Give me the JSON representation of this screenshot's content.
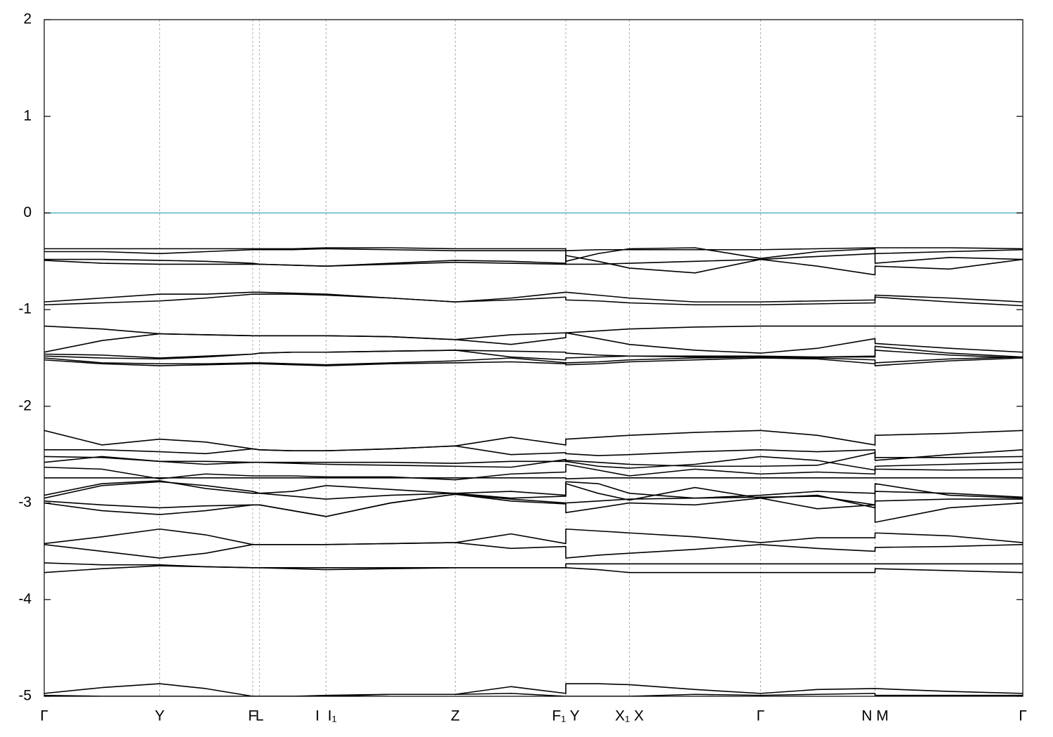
{
  "chart_data": {
    "type": "line",
    "color": "#000000",
    "hline": {
      "value": 0,
      "color": "#56b4c8"
    },
    "grid": "x",
    "xlim": [
      0,
      1
    ],
    "ylim": [
      -5,
      2
    ],
    "yticks": [
      -5,
      -4,
      -3,
      -2,
      -1,
      0,
      1,
      2
    ],
    "xticks": [
      {
        "value": 0,
        "label": "Γ"
      },
      {
        "value": 0.118,
        "label": "Y"
      },
      {
        "value": 0.213,
        "label": "F"
      },
      {
        "value": 0.22,
        "label": "L"
      },
      {
        "value": 0.288,
        "label": "I  I₁"
      },
      {
        "value": 0.42,
        "label": "Z"
      },
      {
        "value": 0.533,
        "label": "F₁ Y"
      },
      {
        "value": 0.598,
        "label": "X₁ X"
      },
      {
        "value": 0.732,
        "label": "Γ"
      },
      {
        "value": 0.849,
        "label": "N M"
      },
      {
        "value": 1,
        "label": "Γ"
      }
    ],
    "x": [
      0,
      0.059,
      0.118,
      0.165,
      0.213,
      0.22,
      0.254,
      0.288,
      0.288,
      0.354,
      0.42,
      0.477,
      0.533,
      0.533,
      0.566,
      0.598,
      0.665,
      0.732,
      0.79,
      0.849,
      0.849,
      0.925,
      1.0
    ],
    "series": [
      {
        "values": [
          -0.37,
          -0.37,
          -0.37,
          -0.37,
          -0.37,
          -0.37,
          -0.37,
          -0.36,
          -0.36,
          -0.36,
          -0.37,
          -0.37,
          -0.37,
          -0.39,
          -0.38,
          -0.38,
          -0.38,
          -0.38,
          -0.37,
          -0.36,
          -0.36,
          -0.36,
          -0.37
        ]
      },
      {
        "values": [
          -0.4,
          -0.4,
          -0.42,
          -0.4,
          -0.38,
          -0.38,
          -0.38,
          -0.37,
          -0.37,
          -0.38,
          -0.39,
          -0.39,
          -0.39,
          -0.5,
          -0.42,
          -0.37,
          -0.36,
          -0.47,
          -0.4,
          -0.37,
          -0.52,
          -0.46,
          -0.48
        ]
      },
      {
        "values": [
          -0.48,
          -0.48,
          -0.49,
          -0.5,
          -0.52,
          -0.53,
          -0.54,
          -0.55,
          -0.55,
          -0.52,
          -0.49,
          -0.5,
          -0.52,
          -0.44,
          -0.5,
          -0.57,
          -0.62,
          -0.48,
          -0.55,
          -0.64,
          -0.55,
          -0.58,
          -0.48
        ]
      },
      {
        "values": [
          -0.49,
          -0.52,
          -0.53,
          -0.53,
          -0.53,
          -0.53,
          -0.54,
          -0.55,
          -0.55,
          -0.53,
          -0.51,
          -0.52,
          -0.53,
          -0.53,
          -0.53,
          -0.52,
          -0.5,
          -0.48,
          -0.45,
          -0.42,
          -0.42,
          -0.4,
          -0.38
        ]
      },
      {
        "values": [
          -0.92,
          -0.88,
          -0.84,
          -0.84,
          -0.82,
          -0.82,
          -0.83,
          -0.84,
          -0.84,
          -0.88,
          -0.92,
          -0.88,
          -0.82,
          -0.82,
          -0.85,
          -0.88,
          -0.92,
          -0.92,
          -0.91,
          -0.9,
          -0.85,
          -0.88,
          -0.92
        ]
      },
      {
        "values": [
          -0.95,
          -0.93,
          -0.91,
          -0.88,
          -0.84,
          -0.84,
          -0.84,
          -0.85,
          -0.85,
          -0.88,
          -0.92,
          -0.9,
          -0.87,
          -0.9,
          -0.91,
          -0.93,
          -0.95,
          -0.95,
          -0.94,
          -0.93,
          -0.87,
          -0.92,
          -0.96
        ]
      },
      {
        "values": [
          -1.17,
          -1.2,
          -1.25,
          -1.26,
          -1.27,
          -1.27,
          -1.27,
          -1.27,
          -1.27,
          -1.28,
          -1.31,
          -1.26,
          -1.24,
          -1.24,
          -1.22,
          -1.2,
          -1.18,
          -1.17,
          -1.17,
          -1.17,
          -1.17,
          -1.17,
          -1.17
        ]
      },
      {
        "values": [
          -1.44,
          -1.32,
          -1.25,
          -1.26,
          -1.27,
          -1.27,
          -1.27,
          -1.27,
          -1.27,
          -1.28,
          -1.31,
          -1.36,
          -1.29,
          -1.24,
          -1.3,
          -1.36,
          -1.42,
          -1.45,
          -1.4,
          -1.3,
          -1.35,
          -1.4,
          -1.44
        ]
      },
      {
        "values": [
          -1.46,
          -1.47,
          -1.5,
          -1.48,
          -1.46,
          -1.45,
          -1.44,
          -1.44,
          -1.44,
          -1.43,
          -1.42,
          -1.43,
          -1.44,
          -1.45,
          -1.47,
          -1.48,
          -1.49,
          -1.49,
          -1.49,
          -1.48,
          -1.38,
          -1.45,
          -1.49
        ]
      },
      {
        "values": [
          -1.48,
          -1.5,
          -1.51,
          -1.49,
          -1.46,
          -1.45,
          -1.44,
          -1.44,
          -1.44,
          -1.43,
          -1.42,
          -1.49,
          -1.52,
          -1.5,
          -1.49,
          -1.48,
          -1.48,
          -1.48,
          -1.49,
          -1.49,
          -1.42,
          -1.47,
          -1.5
        ]
      },
      {
        "values": [
          -1.5,
          -1.55,
          -1.56,
          -1.56,
          -1.55,
          -1.55,
          -1.56,
          -1.57,
          -1.57,
          -1.55,
          -1.53,
          -1.5,
          -1.55,
          -1.55,
          -1.54,
          -1.52,
          -1.5,
          -1.49,
          -1.5,
          -1.52,
          -1.55,
          -1.51,
          -1.49
        ]
      },
      {
        "values": [
          -1.52,
          -1.56,
          -1.58,
          -1.57,
          -1.56,
          -1.56,
          -1.57,
          -1.58,
          -1.58,
          -1.56,
          -1.55,
          -1.54,
          -1.56,
          -1.57,
          -1.56,
          -1.54,
          -1.52,
          -1.5,
          -1.51,
          -1.56,
          -1.58,
          -1.53,
          -1.5
        ]
      },
      {
        "values": [
          -2.25,
          -2.4,
          -2.34,
          -2.37,
          -2.44,
          -2.45,
          -2.46,
          -2.46,
          -2.46,
          -2.44,
          -2.41,
          -2.32,
          -2.4,
          -2.34,
          -2.32,
          -2.3,
          -2.27,
          -2.25,
          -2.3,
          -2.4,
          -2.3,
          -2.28,
          -2.25
        ]
      },
      {
        "values": [
          -2.45,
          -2.45,
          -2.47,
          -2.49,
          -2.44,
          -2.45,
          -2.46,
          -2.46,
          -2.46,
          -2.44,
          -2.41,
          -2.5,
          -2.48,
          -2.49,
          -2.51,
          -2.5,
          -2.47,
          -2.45,
          -2.47,
          -2.45,
          -2.56,
          -2.5,
          -2.45
        ]
      },
      {
        "values": [
          -2.52,
          -2.53,
          -2.57,
          -2.57,
          -2.58,
          -2.58,
          -2.58,
          -2.58,
          -2.58,
          -2.58,
          -2.59,
          -2.57,
          -2.57,
          -2.56,
          -2.58,
          -2.6,
          -2.62,
          -2.62,
          -2.61,
          -2.48,
          -2.53,
          -2.53,
          -2.52
        ]
      },
      {
        "values": [
          -2.58,
          -2.52,
          -2.57,
          -2.6,
          -2.58,
          -2.58,
          -2.59,
          -2.6,
          -2.6,
          -2.61,
          -2.62,
          -2.63,
          -2.55,
          -2.57,
          -2.62,
          -2.64,
          -2.6,
          -2.52,
          -2.56,
          -2.66,
          -2.62,
          -2.6,
          -2.58
        ]
      },
      {
        "values": [
          -2.63,
          -2.65,
          -2.75,
          -2.7,
          -2.72,
          -2.72,
          -2.72,
          -2.73,
          -2.73,
          -2.73,
          -2.76,
          -2.7,
          -2.68,
          -2.6,
          -2.66,
          -2.72,
          -2.65,
          -2.7,
          -2.68,
          -2.7,
          -2.65,
          -2.66,
          -2.65
        ]
      },
      {
        "values": [
          -2.74,
          -2.74,
          -2.74,
          -2.74,
          -2.74,
          -2.74,
          -2.74,
          -2.74,
          -2.74,
          -2.74,
          -2.74,
          -2.74,
          -2.74,
          -2.75,
          -2.74,
          -2.74,
          -2.74,
          -2.74,
          -2.74,
          -2.74,
          -2.74,
          -2.74,
          -2.74
        ]
      },
      {
        "values": [
          -2.92,
          -2.8,
          -2.77,
          -2.85,
          -2.9,
          -2.9,
          -2.88,
          -2.82,
          -2.82,
          -2.86,
          -2.9,
          -2.88,
          -2.92,
          -2.78,
          -2.8,
          -2.9,
          -2.95,
          -2.92,
          -2.88,
          -2.9,
          -2.8,
          -2.92,
          -2.95
        ]
      },
      {
        "values": [
          -2.95,
          -2.82,
          -2.78,
          -2.82,
          -2.88,
          -2.9,
          -2.93,
          -2.96,
          -2.96,
          -2.92,
          -2.9,
          -2.95,
          -2.93,
          -2.8,
          -2.9,
          -2.97,
          -2.84,
          -2.95,
          -2.92,
          -3.05,
          -2.88,
          -2.9,
          -2.94
        ]
      },
      {
        "values": [
          -2.98,
          -3.02,
          -3.05,
          -3.03,
          -3.02,
          -3.02,
          -3.08,
          -3.14,
          -3.14,
          -3.0,
          -2.91,
          -2.96,
          -3.0,
          -3.0,
          -2.98,
          -2.96,
          -2.95,
          -2.94,
          -2.93,
          -3.02,
          -2.98,
          -2.96,
          -2.96
        ]
      },
      {
        "values": [
          -3.0,
          -3.08,
          -3.12,
          -3.08,
          -3.02,
          -3.02,
          -3.08,
          -3.14,
          -3.14,
          -3.0,
          -2.91,
          -2.98,
          -3.01,
          -3.1,
          -3.05,
          -3.0,
          -3.02,
          -2.95,
          -3.06,
          -3.02,
          -3.2,
          -3.05,
          -3.0
        ]
      },
      {
        "values": [
          -3.42,
          -3.35,
          -3.27,
          -3.33,
          -3.43,
          -3.43,
          -3.43,
          -3.43,
          -3.43,
          -3.42,
          -3.41,
          -3.32,
          -3.42,
          -3.27,
          -3.29,
          -3.31,
          -3.35,
          -3.41,
          -3.36,
          -3.36,
          -3.31,
          -3.34,
          -3.41
        ]
      },
      {
        "values": [
          -3.43,
          -3.5,
          -3.57,
          -3.52,
          -3.43,
          -3.43,
          -3.43,
          -3.43,
          -3.43,
          -3.42,
          -3.41,
          -3.47,
          -3.45,
          -3.57,
          -3.54,
          -3.52,
          -3.48,
          -3.43,
          -3.47,
          -3.5,
          -3.46,
          -3.45,
          -3.43
        ]
      },
      {
        "values": [
          -3.62,
          -3.64,
          -3.64,
          -3.66,
          -3.67,
          -3.67,
          -3.67,
          -3.67,
          -3.67,
          -3.67,
          -3.67,
          -3.67,
          -3.67,
          -3.63,
          -3.63,
          -3.63,
          -3.63,
          -3.63,
          -3.63,
          -3.63,
          -3.63,
          -3.63,
          -3.63
        ]
      },
      {
        "values": [
          -3.72,
          -3.68,
          -3.65,
          -3.66,
          -3.67,
          -3.67,
          -3.68,
          -3.69,
          -3.69,
          -3.68,
          -3.67,
          -3.67,
          -3.67,
          -3.67,
          -3.69,
          -3.72,
          -3.72,
          -3.72,
          -3.72,
          -3.72,
          -3.68,
          -3.7,
          -3.72
        ]
      },
      {
        "values": [
          -4.97,
          -4.91,
          -4.87,
          -4.92,
          -5.0,
          -5.0,
          -5.0,
          -4.99,
          -4.99,
          -4.98,
          -4.98,
          -4.9,
          -4.97,
          -4.87,
          -4.87,
          -4.88,
          -4.93,
          -4.97,
          -4.93,
          -4.92,
          -4.92,
          -4.95,
          -4.97
        ]
      },
      {
        "values": [
          -4.99,
          -5.0,
          -5.0,
          -5.0,
          -5.0,
          -5.0,
          -5.0,
          -5.0,
          -5.0,
          -4.98,
          -4.98,
          -4.97,
          -5.0,
          -5.0,
          -5.0,
          -5.0,
          -4.98,
          -4.99,
          -4.98,
          -4.97,
          -4.99,
          -4.99,
          -4.99
        ]
      }
    ]
  }
}
